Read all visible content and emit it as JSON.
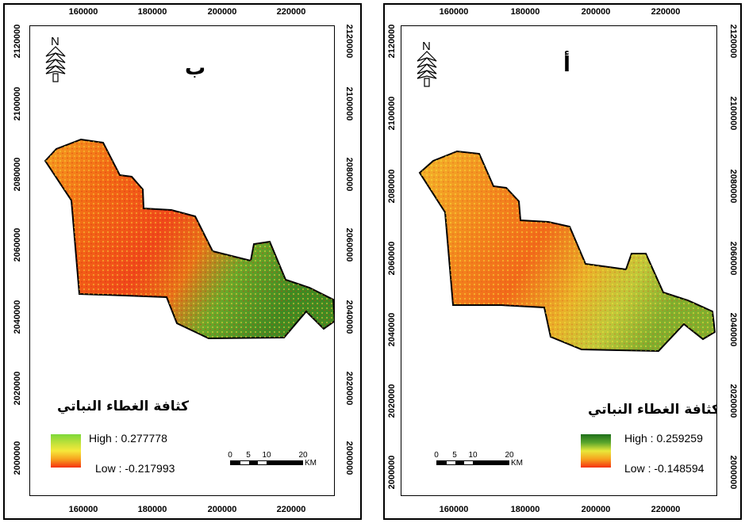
{
  "panels": [
    {
      "id": "b",
      "letter": "ب",
      "north_label": "N",
      "x_ticks": [
        "160000",
        "180000",
        "200000",
        "220000"
      ],
      "y_ticks_left": [
        "2120000",
        "2100000",
        "2080000",
        "2060000",
        "2040000",
        "2020000",
        "2000000"
      ],
      "y_ticks_right": [
        "2120000",
        "2100000",
        "2080000",
        "2060000",
        "2040000",
        "2020000",
        "2000000"
      ],
      "legend": {
        "title": "كثافة الغطاء النباتي",
        "high": "High : 0.277778",
        "low": "Low : -0.217993"
      },
      "scale": {
        "labels": [
          "0",
          "5",
          "10",
          "20"
        ],
        "unit": "KM"
      }
    },
    {
      "id": "a",
      "letter": "أ",
      "north_label": "N",
      "x_ticks": [
        "160000",
        "180000",
        "200000",
        "220000"
      ],
      "y_ticks_left": [
        "2120000",
        "2100000",
        "2080000",
        "2060000",
        "2040000",
        "2020000",
        "2000000"
      ],
      "y_ticks_right": [
        "2120000",
        "2100000",
        "2080000",
        "2060000",
        "2040000",
        "2020000",
        "2000000"
      ],
      "legend": {
        "title": "كثافة الغطاء النباتي",
        "high": "High : 0.259259",
        "low": "Low : -0.148594"
      },
      "scale": {
        "labels": [
          "0",
          "5",
          "10",
          "20"
        ],
        "unit": "KM"
      }
    }
  ],
  "colors": {
    "low": "#f5300e",
    "mid": "#f7a11e",
    "yellow": "#f6e83a",
    "high_b": "#7dd83a",
    "high_a": "#1e6f1b",
    "outline": "#000000"
  }
}
